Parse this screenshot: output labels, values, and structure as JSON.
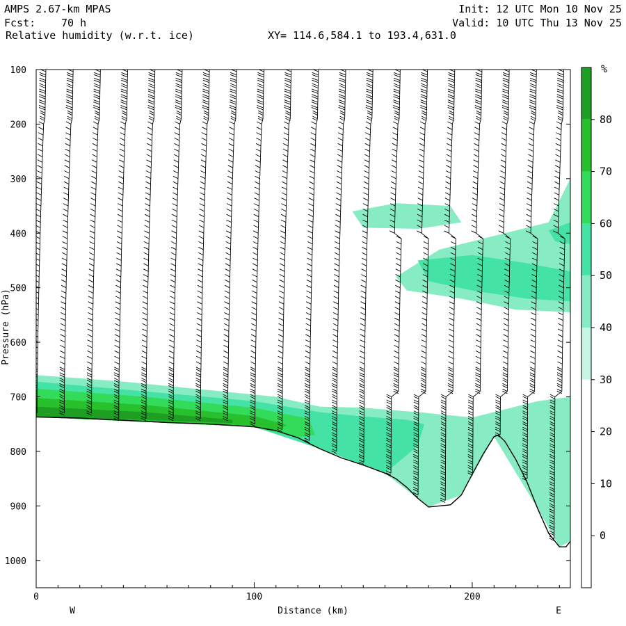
{
  "header": {
    "model": "AMPS 2.67-km MPAS",
    "fcst_label": "Fcst:",
    "fcst_value": "70 h",
    "field": "Relative humidity (w.r.t. ice)",
    "init": "Init: 12 UTC Mon 10 Nov 25",
    "valid": "Valid: 10 UTC Thu 13 Nov 25",
    "xy": "XY= 114.6,584.1 to 193.4,631.0"
  },
  "chart_data": {
    "type": "heatmap",
    "title": "Relative humidity (w.r.t. ice)",
    "xlabel": "Distance (km)",
    "ylabel": "Pressure (hPa)",
    "xlim": [
      0,
      245
    ],
    "ylim": [
      100,
      1050
    ],
    "y_inverted": true,
    "x_ticks": [
      0,
      100,
      200
    ],
    "y_ticks": [
      100,
      200,
      300,
      400,
      500,
      600,
      700,
      800,
      900,
      1000
    ],
    "end_labels": {
      "left": "W",
      "right": "E"
    },
    "colorbar": {
      "unit": "%",
      "levels": [
        0,
        10,
        20,
        30,
        40,
        50,
        60,
        70,
        80
      ],
      "colors": [
        "#ffffff",
        "#ffffff",
        "#ffffff",
        "#ffffff",
        "#c8f6e4",
        "#87ecc4",
        "#45e2a6",
        "#32dc5a",
        "#28c02c",
        "#1e9e22"
      ]
    },
    "terrain_pressure": [
      [
        0,
        737
      ],
      [
        20,
        739
      ],
      [
        40,
        743
      ],
      [
        60,
        747
      ],
      [
        80,
        750
      ],
      [
        100,
        755
      ],
      [
        110,
        762
      ],
      [
        120,
        775
      ],
      [
        130,
        795
      ],
      [
        140,
        812
      ],
      [
        150,
        825
      ],
      [
        160,
        840
      ],
      [
        165,
        850
      ],
      [
        170,
        866
      ],
      [
        175,
        886
      ],
      [
        180,
        902
      ],
      [
        190,
        898
      ],
      [
        195,
        880
      ],
      [
        200,
        842
      ],
      [
        205,
        805
      ],
      [
        210,
        773
      ],
      [
        212,
        770
      ],
      [
        215,
        782
      ],
      [
        220,
        815
      ],
      [
        225,
        855
      ],
      [
        230,
        905
      ],
      [
        235,
        950
      ],
      [
        240,
        975
      ],
      [
        243,
        975
      ],
      [
        245,
        965
      ]
    ],
    "rh_regions": [
      {
        "rh": 40,
        "points": [
          [
            0,
            660
          ],
          [
            40,
            672
          ],
          [
            80,
            688
          ],
          [
            110,
            700
          ],
          [
            130,
            718
          ],
          [
            150,
            720
          ],
          [
            175,
            728
          ],
          [
            200,
            738
          ],
          [
            230,
            708
          ],
          [
            245,
            700
          ],
          [
            245,
            965
          ],
          [
            240,
            975
          ],
          [
            230,
            905
          ],
          [
            210,
            773
          ],
          [
            195,
            880
          ],
          [
            180,
            902
          ],
          [
            160,
            840
          ],
          [
            130,
            795
          ],
          [
            100,
            755
          ],
          [
            0,
            737
          ]
        ]
      },
      {
        "rh": 40,
        "points": [
          [
            145,
            360
          ],
          [
            165,
            345
          ],
          [
            190,
            350
          ],
          [
            195,
            380
          ],
          [
            175,
            392
          ],
          [
            150,
            390
          ]
        ]
      },
      {
        "rh": 40,
        "points": [
          [
            165,
            480
          ],
          [
            185,
            430
          ],
          [
            215,
            400
          ],
          [
            235,
            380
          ],
          [
            245,
            300
          ],
          [
            245,
            545
          ],
          [
            220,
            540
          ],
          [
            195,
            520
          ],
          [
            170,
            505
          ]
        ]
      },
      {
        "rh": 50,
        "points": [
          [
            0,
            672
          ],
          [
            50,
            690
          ],
          [
            100,
            708
          ],
          [
            130,
            728
          ],
          [
            150,
            736
          ],
          [
            170,
            742
          ],
          [
            178,
            750
          ],
          [
            175,
            790
          ],
          [
            160,
            840
          ],
          [
            130,
            795
          ],
          [
            100,
            755
          ],
          [
            0,
            737
          ]
        ]
      },
      {
        "rh": 50,
        "points": [
          [
            175,
            450
          ],
          [
            200,
            440
          ],
          [
            225,
            455
          ],
          [
            245,
            470
          ],
          [
            245,
            525
          ],
          [
            225,
            520
          ],
          [
            200,
            505
          ],
          [
            180,
            488
          ]
        ]
      },
      {
        "rh": 50,
        "points": [
          [
            235,
            395
          ],
          [
            245,
            380
          ],
          [
            245,
            420
          ],
          [
            238,
            415
          ]
        ]
      },
      {
        "rh": 60,
        "points": [
          [
            0,
            685
          ],
          [
            50,
            700
          ],
          [
            100,
            720
          ],
          [
            125,
            740
          ],
          [
            128,
            770
          ],
          [
            120,
            775
          ],
          [
            100,
            755
          ],
          [
            0,
            737
          ]
        ]
      },
      {
        "rh": 70,
        "points": [
          [
            0,
            702
          ],
          [
            50,
            715
          ],
          [
            100,
            735
          ],
          [
            115,
            752
          ],
          [
            110,
            762
          ],
          [
            100,
            755
          ],
          [
            0,
            737
          ]
        ]
      },
      {
        "rh": 80,
        "points": [
          [
            0,
            718
          ],
          [
            50,
            728
          ],
          [
            90,
            742
          ],
          [
            90,
            748
          ],
          [
            50,
            742
          ],
          [
            0,
            737
          ]
        ]
      }
    ]
  }
}
